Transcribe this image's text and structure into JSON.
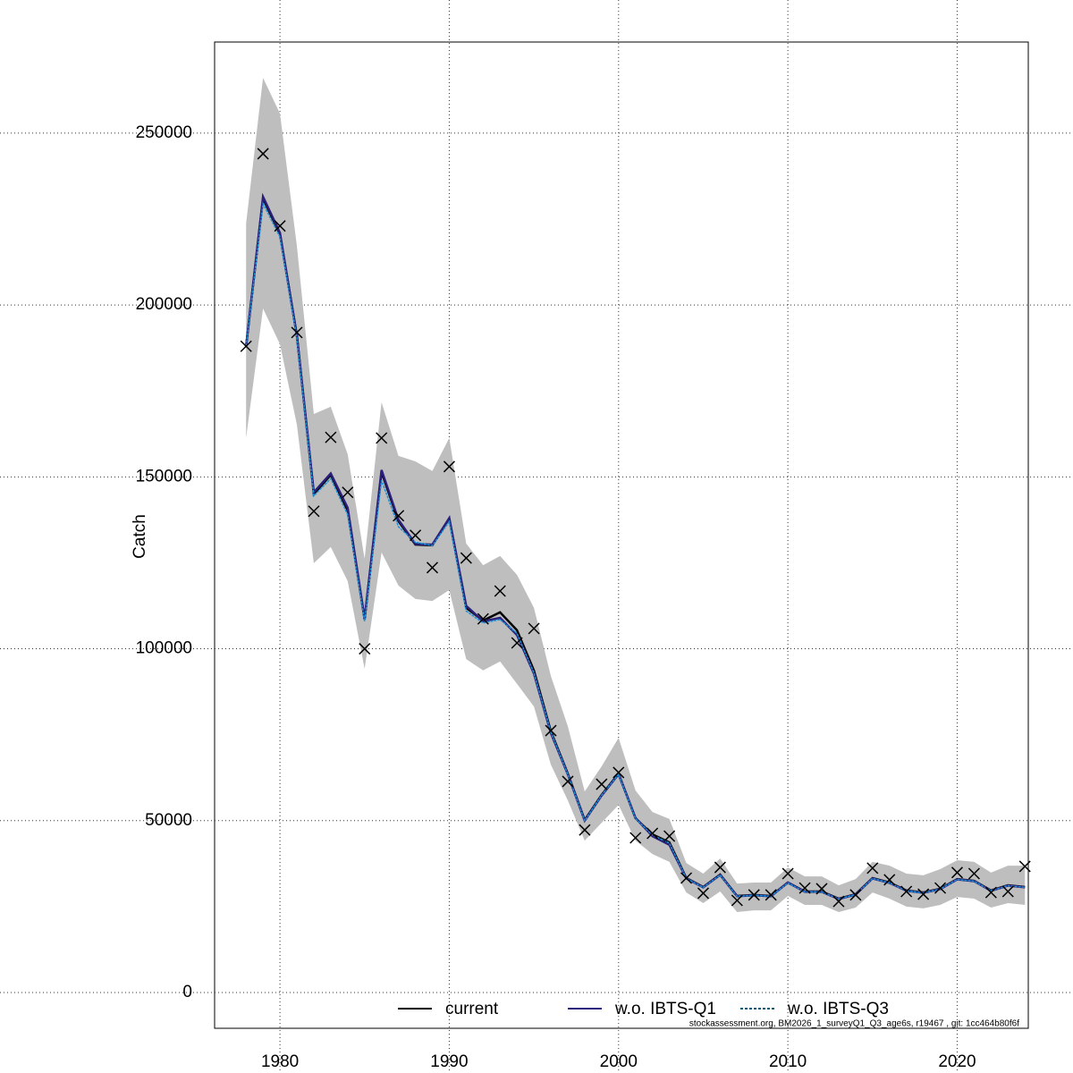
{
  "chart_data": {
    "type": "line",
    "y_label": "Catch",
    "footer": "stockassessment.org, BM2026_1_surveyQ1_Q3_age6s, r19467 , git: 1cc464b80f6f",
    "x": [
      1978,
      1979,
      1980,
      1981,
      1982,
      1983,
      1984,
      1985,
      1986,
      1987,
      1988,
      1989,
      1990,
      1991,
      1992,
      1993,
      1994,
      1995,
      1996,
      1997,
      1998,
      1999,
      2000,
      2001,
      2002,
      2003,
      2004,
      2005,
      2006,
      2007,
      2008,
      2009,
      2010,
      2011,
      2012,
      2013,
      2014,
      2015,
      2016,
      2017,
      2018,
      2019,
      2020,
      2021,
      2022,
      2023,
      2024
    ],
    "xlim": [
      1976.14,
      2024.2
    ],
    "xticks": [
      1980,
      1990,
      2000,
      2010,
      2020
    ],
    "ylim": [
      -10400,
      276500
    ],
    "yticks": [
      0,
      50000,
      100000,
      150000,
      200000,
      250000
    ],
    "grid": true,
    "legend": "bottom",
    "band_color": "#bebebe",
    "band_upper": [
      223700,
      266100,
      255700,
      217200,
      168300,
      170400,
      156600,
      126200,
      171700,
      156100,
      154500,
      151700,
      161300,
      130600,
      124300,
      127000,
      121500,
      111900,
      92100,
      77500,
      58500,
      65800,
      74100,
      58800,
      52500,
      50500,
      37700,
      34600,
      39000,
      31700,
      32000,
      32000,
      36400,
      33800,
      33800,
      31200,
      33000,
      38000,
      36900,
      34600,
      34100,
      35900,
      38500,
      38000,
      34900,
      36900,
      36900
    ],
    "band_lower": [
      161300,
      199000,
      188600,
      165200,
      124900,
      129600,
      119700,
      94200,
      128000,
      118400,
      114500,
      113900,
      117100,
      97000,
      93700,
      96300,
      89800,
      83200,
      66300,
      55900,
      44200,
      49400,
      54600,
      44200,
      40300,
      38000,
      29100,
      26000,
      29400,
      23400,
      23900,
      23900,
      28100,
      25500,
      25500,
      23400,
      24700,
      29100,
      27300,
      25000,
      24500,
      25500,
      27800,
      27300,
      24700,
      26000,
      25500
    ],
    "observed": [
      188000,
      244000,
      223000,
      192000,
      140000,
      161500,
      145500,
      100000,
      161300,
      138700,
      133000,
      123600,
      153000,
      126400,
      108700,
      116800,
      101700,
      105900,
      76200,
      61400,
      47300,
      60600,
      64000,
      45000,
      46300,
      45500,
      33300,
      28900,
      36400,
      26800,
      28400,
      28400,
      34600,
      30400,
      30200,
      26500,
      28400,
      36200,
      32800,
      29400,
      28600,
      30400,
      34900,
      34600,
      29100,
      29400,
      36700
    ],
    "series": [
      {
        "name": "current",
        "color": "#000000",
        "linestyle": "solid",
        "values": [
          188000,
          231000,
          220600,
          191200,
          145000,
          150600,
          140200,
          108500,
          151400,
          137100,
          130300,
          130100,
          137900,
          111900,
          108200,
          110600,
          105400,
          93700,
          76000,
          63700,
          50200,
          57500,
          63700,
          50700,
          46000,
          43700,
          33300,
          30700,
          34300,
          28100,
          28400,
          28100,
          32000,
          29400,
          29400,
          27300,
          28600,
          33300,
          32000,
          29700,
          29100,
          30200,
          33000,
          32500,
          29700,
          31200,
          30700
        ]
      },
      {
        "name": "w.o. IBTS-Q1",
        "color": "#2a1f7a",
        "linestyle": "solid",
        "values": [
          188000,
          231500,
          221000,
          191000,
          145500,
          151000,
          141000,
          108800,
          152000,
          137500,
          130500,
          130300,
          138000,
          112500,
          108000,
          109000,
          104000,
          92800,
          75500,
          63500,
          50000,
          57300,
          63500,
          50800,
          45500,
          43000,
          33200,
          30600,
          34200,
          28000,
          28300,
          28000,
          32000,
          29300,
          29300,
          27200,
          28500,
          33200,
          31900,
          29600,
          29000,
          30100,
          32900,
          32400,
          29600,
          31100,
          30600
        ]
      },
      {
        "name": "w.o. IBTS-Q3",
        "color": "#1e90d6",
        "linestyle": "dotted",
        "values": [
          188000,
          229500,
          219800,
          190500,
          144500,
          149500,
          139000,
          108000,
          149000,
          135500,
          131000,
          130000,
          137000,
          111000,
          107500,
          108500,
          104500,
          93000,
          75800,
          63500,
          50000,
          57400,
          63500,
          50600,
          45800,
          43500,
          33200,
          30600,
          34200,
          28000,
          28300,
          28000,
          31900,
          29300,
          29300,
          27200,
          28500,
          33200,
          31900,
          29600,
          29000,
          30100,
          32900,
          32400,
          29600,
          31100,
          30600
        ]
      }
    ]
  }
}
